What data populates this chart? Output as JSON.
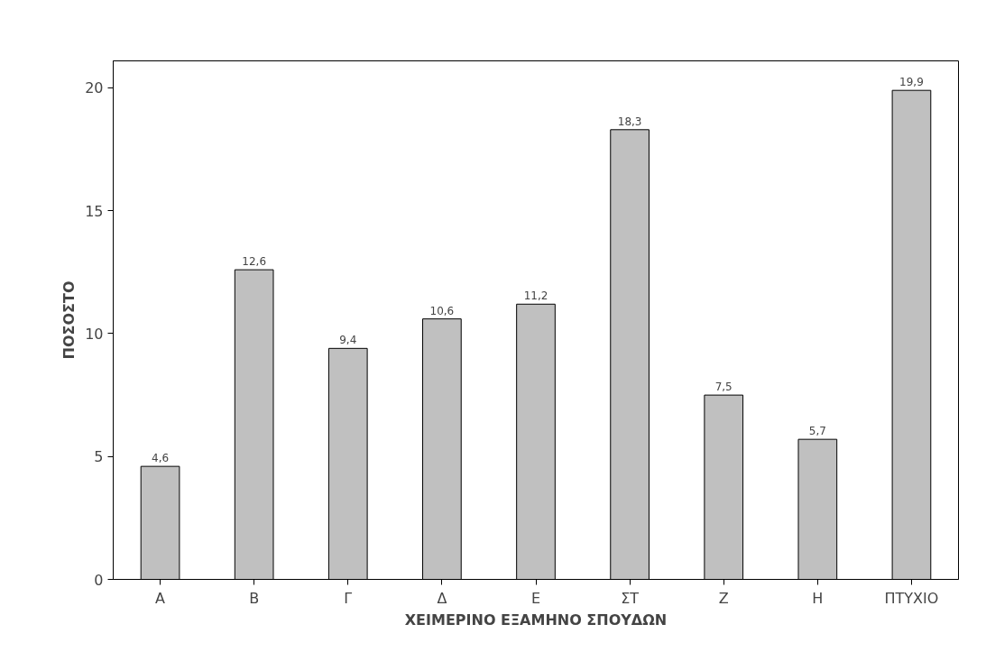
{
  "chart_data": {
    "type": "bar",
    "xlabel": "ΧΕΙΜΕΡΙΝΟ ΕΞΑΜΗΝΟ ΣΠΟΥΔΩΝ",
    "ylabel": "ΠΟΣΟΣΤΟ",
    "categories": [
      "Α",
      "Β",
      "Γ",
      "Δ",
      "Ε",
      "ΣΤ",
      "Ζ",
      "Η",
      "ΠΤΥΧΙΟ"
    ],
    "values": [
      4.6,
      12.6,
      9.4,
      10.6,
      11.2,
      18.3,
      7.5,
      5.7,
      19.9
    ],
    "value_labels": [
      "4,6",
      "12,6",
      "9,4",
      "10,6",
      "11,2",
      "18,3",
      "7,5",
      "5,7",
      "19,9"
    ],
    "color": "#c0c0c0",
    "ylim": [
      0,
      21.1
    ],
    "yticks": [
      0,
      5,
      10,
      15,
      20
    ],
    "grid": false
  }
}
